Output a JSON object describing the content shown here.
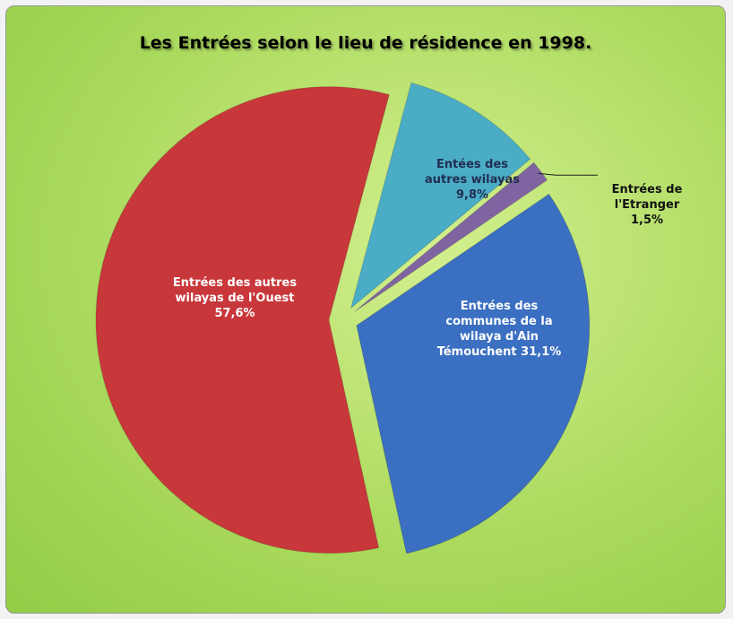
{
  "chart_data": {
    "type": "pie",
    "title": "Les  Entrées selon le lieu de résidence en 1998.",
    "categories": [
      "Entées des autres wilayas",
      "Entrées de l'Etranger",
      "Entrées des communes de la wilaya d'Ain Témouchent",
      "Entrées des autres wilayas de l'Ouest"
    ],
    "values": [
      9.8,
      1.5,
      31.1,
      57.6
    ],
    "value_labels": [
      "9,8%",
      "1,5%",
      "31,1%",
      "57,6%"
    ],
    "colors": [
      "#4bacc6",
      "#8064a2",
      "#3a6fc1",
      "#c8373a"
    ]
  }
}
